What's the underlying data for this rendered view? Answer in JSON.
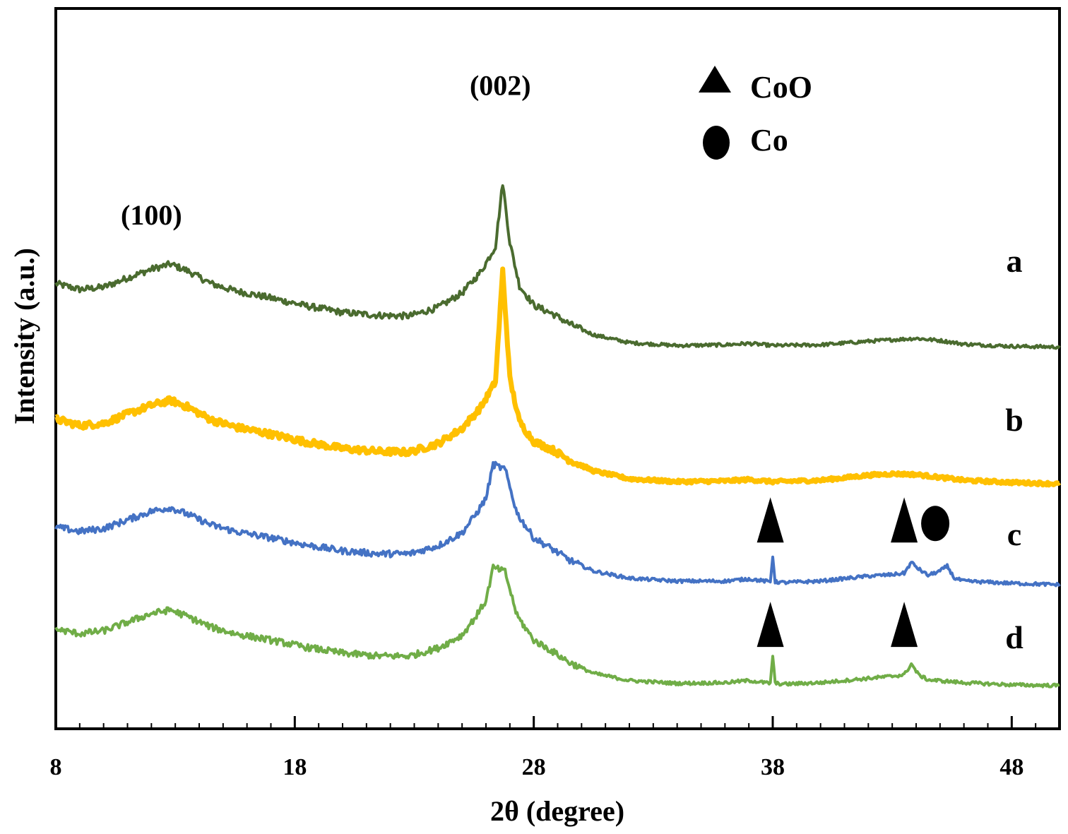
{
  "chart_data": {
    "type": "line",
    "title": "",
    "xlabel": "2θ (degree)",
    "ylabel": "Intensity (a.u.)",
    "xlim": [
      8,
      50
    ],
    "xticks": [
      8,
      18,
      28,
      38,
      48
    ],
    "xtick_labels": [
      "8",
      "18",
      "28",
      "38",
      "48"
    ],
    "ylim": [
      0,
      100
    ],
    "grid": false,
    "series": [
      {
        "name": "a",
        "color": "#4a6b2f",
        "offset": 53,
        "x": [
          8,
          9,
          10,
          11,
          12,
          12.8,
          13.5,
          14.5,
          15.5,
          17,
          18.5,
          20,
          21.5,
          22.8,
          24,
          25,
          25.8,
          26.4,
          26.7,
          27.0,
          27.4,
          28,
          28.8,
          29.5,
          30.5,
          32,
          34,
          36,
          37,
          38,
          40,
          42,
          43,
          44,
          45,
          46,
          48,
          50
        ],
        "y": [
          8.8,
          8.0,
          8.3,
          9.6,
          10.8,
          11.5,
          10.6,
          8.8,
          7.8,
          6.8,
          5.7,
          4.8,
          4.4,
          4.3,
          5.5,
          7.5,
          10.5,
          14.0,
          22.8,
          14.5,
          8.5,
          5.8,
          4.6,
          3.2,
          1.7,
          0.6,
          0.2,
          0.3,
          0.5,
          0.2,
          0.3,
          0.8,
          1.0,
          1.2,
          0.9,
          0.4,
          0.1,
          0.0
        ]
      },
      {
        "name": "b",
        "color": "#ffc000",
        "offset": 34,
        "x": [
          8,
          9,
          10,
          11,
          12,
          12.8,
          13.5,
          14.5,
          15.5,
          17,
          18.5,
          20,
          21.5,
          22.8,
          24,
          25,
          25.8,
          26.4,
          26.7,
          27.0,
          27.4,
          28,
          28.8,
          29.5,
          30.5,
          32,
          34,
          36,
          37,
          38,
          40,
          42,
          43,
          44,
          45,
          46,
          48,
          50
        ],
        "y": [
          9.0,
          8.1,
          8.4,
          9.7,
          10.9,
          11.6,
          10.7,
          8.9,
          7.9,
          6.9,
          5.8,
          4.9,
          4.5,
          4.4,
          5.6,
          7.7,
          10.7,
          14.2,
          29.6,
          14.6,
          8.6,
          5.9,
          4.7,
          3.3,
          1.8,
          0.7,
          0.3,
          0.4,
          0.6,
          0.3,
          0.5,
          1.2,
          1.4,
          1.3,
          0.9,
          0.5,
          0.2,
          0.0
        ]
      },
      {
        "name": "c",
        "color": "#4472c4",
        "offset": 20,
        "x": [
          8,
          9,
          10,
          11,
          12,
          12.8,
          13.5,
          14.5,
          15.5,
          17,
          18.5,
          20,
          21.5,
          22.8,
          24,
          25,
          25.6,
          26.0,
          26.3,
          26.8,
          27.3,
          28,
          28.8,
          29.5,
          30.5,
          32,
          34,
          36,
          37,
          37.9,
          38.0,
          38.1,
          38.5,
          40,
          42,
          43,
          43.5,
          43.8,
          44.1,
          44.5,
          45.0,
          45.3,
          45.6,
          46,
          48,
          50
        ],
        "y": [
          8.0,
          7.4,
          7.8,
          9.0,
          10.2,
          10.7,
          9.8,
          8.3,
          7.4,
          6.5,
          5.5,
          4.7,
          4.3,
          4.3,
          5.4,
          7.2,
          9.9,
          12.0,
          16.7,
          16.0,
          9.9,
          6.5,
          4.9,
          3.4,
          1.9,
          0.9,
          0.5,
          0.5,
          0.8,
          0.4,
          4.0,
          0.4,
          0.3,
          0.5,
          1.2,
          1.4,
          1.6,
          3.1,
          2.2,
          1.3,
          1.9,
          2.6,
          0.9,
          0.5,
          0.2,
          0.0
        ]
      },
      {
        "name": "d",
        "color": "#70ad47",
        "offset": 6,
        "x": [
          8,
          9,
          10,
          11,
          12,
          12.8,
          13.5,
          14.5,
          15.5,
          17,
          18.5,
          20,
          21.5,
          22.8,
          24,
          25,
          25.6,
          26.0,
          26.3,
          26.8,
          27.3,
          28,
          28.8,
          29.5,
          30.5,
          32,
          34,
          36,
          37,
          37.9,
          38.0,
          38.1,
          38.5,
          40,
          42,
          43,
          43.5,
          43.8,
          44.1,
          44.5,
          46,
          48,
          50
        ],
        "y": [
          7.8,
          7.2,
          7.6,
          8.8,
          10.0,
          10.5,
          9.6,
          8.1,
          7.2,
          6.3,
          5.3,
          4.5,
          4.1,
          4.1,
          5.2,
          7.0,
          9.7,
          11.8,
          16.4,
          15.8,
          9.7,
          6.3,
          4.7,
          3.2,
          1.7,
          0.7,
          0.3,
          0.4,
          0.7,
          0.3,
          4.2,
          0.3,
          0.2,
          0.4,
          1.0,
          1.3,
          1.5,
          3.0,
          1.5,
          0.8,
          0.4,
          0.1,
          0.0
        ]
      }
    ],
    "peak_labels": [
      {
        "text": "(100)",
        "x": 12.0,
        "y": 70
      },
      {
        "text": "(002)",
        "x": 26.6,
        "y": 88
      }
    ],
    "markers": [
      {
        "symbol": "triangle",
        "phase": "CoO",
        "x": 37.9,
        "y": 29,
        "series": "c"
      },
      {
        "symbol": "triangle",
        "phase": "CoO",
        "x": 43.5,
        "y": 29,
        "series": "c"
      },
      {
        "symbol": "circle",
        "phase": "Co",
        "x": 44.8,
        "y": 28.5,
        "series": "c"
      },
      {
        "symbol": "triangle",
        "phase": "CoO",
        "x": 37.9,
        "y": 14.5,
        "series": "d"
      },
      {
        "symbol": "triangle",
        "phase": "CoO",
        "x": 43.5,
        "y": 14.5,
        "series": "d"
      }
    ],
    "legend": {
      "placement": "top-right",
      "entries": [
        {
          "symbol": "triangle",
          "label": "CoO"
        },
        {
          "symbol": "circle",
          "label": "Co"
        }
      ]
    }
  }
}
